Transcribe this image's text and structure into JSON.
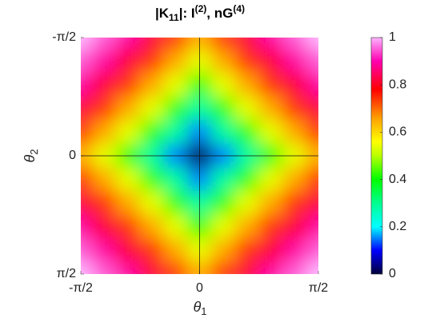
{
  "chart_data": {
    "type": "heatmap",
    "title": [
      "|K",
      "11",
      "|:  I",
      "(2)",
      ", nG",
      "(4)"
    ],
    "xlabel": [
      "θ",
      "1"
    ],
    "ylabel": [
      "θ",
      "2"
    ],
    "x": [
      -1.5708,
      -1.2566,
      -0.9425,
      -0.6283,
      -0.3142,
      0,
      0.3142,
      0.6283,
      0.9425,
      1.2566,
      1.5708
    ],
    "y": [
      -1.5708,
      -1.2566,
      -0.9425,
      -0.6283,
      -0.3142,
      0,
      0.3142,
      0.6283,
      0.9425,
      1.2566,
      1.5708
    ],
    "z": [
      [
        1,
        0.95,
        0.89,
        0.82,
        0.74,
        0.65,
        0.74,
        0.82,
        0.89,
        0.95,
        1
      ],
      [
        0.95,
        0.89,
        0.82,
        0.74,
        0.65,
        0.54,
        0.65,
        0.74,
        0.82,
        0.89,
        0.95
      ],
      [
        0.89,
        0.82,
        0.74,
        0.65,
        0.54,
        0.42,
        0.54,
        0.65,
        0.74,
        0.82,
        0.89
      ],
      [
        0.82,
        0.74,
        0.65,
        0.54,
        0.42,
        0.29,
        0.42,
        0.54,
        0.65,
        0.74,
        0.82
      ],
      [
        0.74,
        0.65,
        0.54,
        0.42,
        0.29,
        0.15,
        0.29,
        0.42,
        0.54,
        0.65,
        0.74
      ],
      [
        0.65,
        0.54,
        0.42,
        0.29,
        0.15,
        0,
        0.15,
        0.29,
        0.42,
        0.54,
        0.65
      ],
      [
        0.74,
        0.65,
        0.54,
        0.42,
        0.29,
        0.15,
        0.29,
        0.42,
        0.54,
        0.65,
        0.74
      ],
      [
        0.82,
        0.74,
        0.65,
        0.54,
        0.42,
        0.29,
        0.42,
        0.54,
        0.65,
        0.74,
        0.82
      ],
      [
        0.89,
        0.82,
        0.74,
        0.65,
        0.54,
        0.42,
        0.54,
        0.65,
        0.74,
        0.82,
        0.89
      ],
      [
        0.95,
        0.89,
        0.82,
        0.74,
        0.65,
        0.54,
        0.65,
        0.74,
        0.82,
        0.89,
        0.95
      ],
      [
        1,
        0.95,
        0.89,
        0.82,
        0.74,
        0.65,
        0.74,
        0.82,
        0.89,
        0.95,
        1
      ]
    ],
    "xlim": [
      -1.5708,
      1.5708
    ],
    "ylim": [
      -1.5708,
      1.5708
    ],
    "y_reversed": true,
    "xticks": [
      {
        "value": -1.5708,
        "label": "-π/2"
      },
      0,
      {
        "value": 1.5708,
        "label": "π/2"
      }
    ],
    "yticks": [
      {
        "value": -1.5708,
        "label": "-π/2"
      },
      0,
      {
        "value": 1.5708,
        "label": "π/2"
      }
    ],
    "zero_lines": true,
    "clim": [
      0,
      1
    ],
    "cticks": [
      0,
      0.2,
      0.4,
      0.6,
      0.8,
      1
    ],
    "colormap": [
      [
        0,
        "#00003a"
      ],
      [
        0.1,
        "#0000ff"
      ],
      [
        0.2,
        "#00ffff"
      ],
      [
        0.3,
        "#00ff90"
      ],
      [
        0.4,
        "#00ff00"
      ],
      [
        0.5,
        "#b8ff00"
      ],
      [
        0.56,
        "#ffff00"
      ],
      [
        0.66,
        "#ffa000"
      ],
      [
        0.78,
        "#ff0000"
      ],
      [
        0.9,
        "#ff00b0"
      ],
      [
        1,
        "#ffb4ff"
      ]
    ]
  }
}
